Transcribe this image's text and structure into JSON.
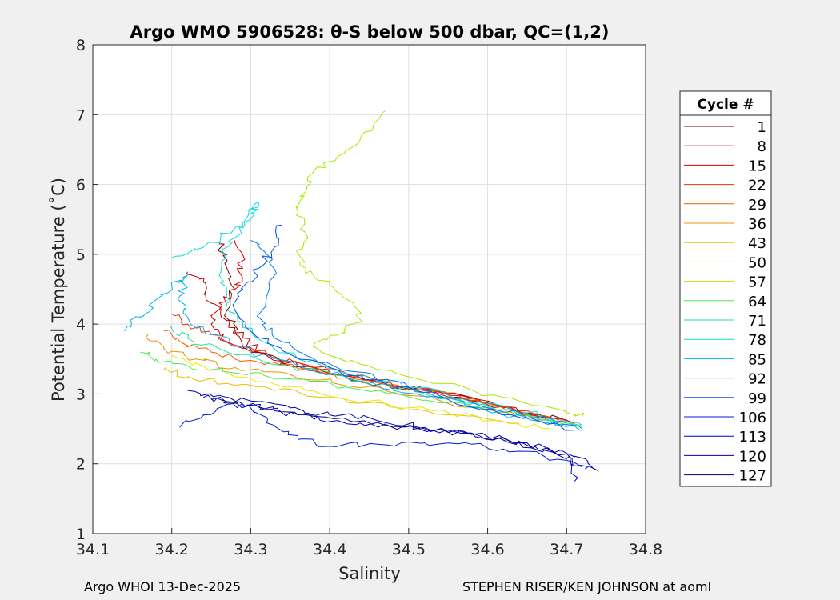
{
  "chart_data": {
    "type": "line",
    "title": "Argo WMO 5906528: θ-S below 500 dbar,  QC=(1,2)",
    "xlabel": "Salinity",
    "ylabel": "Potential Temperature (˚C)",
    "xlim": [
      34.1,
      34.8
    ],
    "ylim": [
      1,
      8
    ],
    "xticks": [
      34.1,
      34.2,
      34.3,
      34.4,
      34.5,
      34.6,
      34.7,
      34.8
    ],
    "yticks": [
      1,
      2,
      3,
      4,
      5,
      6,
      7,
      8
    ],
    "xtick_labels": [
      "34.1",
      "34.2",
      "34.3",
      "34.4",
      "34.5",
      "34.6",
      "34.7",
      "34.8"
    ],
    "ytick_labels": [
      "1",
      "2",
      "3",
      "4",
      "5",
      "6",
      "7",
      "8"
    ],
    "grid": true,
    "legend_title": "Cycle #",
    "legend_position": "outside-right",
    "legend": [
      {
        "label": "1",
        "color": "#800000"
      },
      {
        "label": "8",
        "color": "#aa0000"
      },
      {
        "label": "15",
        "color": "#d40000"
      },
      {
        "label": "22",
        "color": "#e83000"
      },
      {
        "label": "29",
        "color": "#ee6000"
      },
      {
        "label": "36",
        "color": "#f09000"
      },
      {
        "label": "43",
        "color": "#e8c000"
      },
      {
        "label": "50",
        "color": "#e8e800"
      },
      {
        "label": "57",
        "color": "#a8e800"
      },
      {
        "label": "64",
        "color": "#50e850"
      },
      {
        "label": "71",
        "color": "#20e0a0"
      },
      {
        "label": "78",
        "color": "#10d8d8"
      },
      {
        "label": "85",
        "color": "#00b0f0"
      },
      {
        "label": "92",
        "color": "#0080e8"
      },
      {
        "label": "99",
        "color": "#0050e0"
      },
      {
        "label": "106",
        "color": "#0020d8"
      },
      {
        "label": "113",
        "color": "#0000c8"
      },
      {
        "label": "120",
        "color": "#0000a0"
      },
      {
        "label": "127",
        "color": "#000080"
      }
    ],
    "series": [
      {
        "name": "1",
        "color": "#800000",
        "points": [
          [
            34.26,
            5.15
          ],
          [
            34.27,
            4.9
          ],
          [
            34.28,
            4.5
          ],
          [
            34.27,
            4.2
          ],
          [
            34.28,
            3.9
          ],
          [
            34.3,
            3.6
          ],
          [
            34.34,
            3.45
          ],
          [
            34.4,
            3.3
          ],
          [
            34.47,
            3.15
          ],
          [
            34.55,
            3.0
          ],
          [
            34.62,
            2.82
          ],
          [
            34.7,
            2.62
          ]
        ]
      },
      {
        "name": "8",
        "color": "#aa0000",
        "points": [
          [
            34.22,
            4.75
          ],
          [
            34.24,
            4.6
          ],
          [
            34.25,
            4.3
          ],
          [
            34.27,
            4.05
          ],
          [
            34.29,
            3.8
          ],
          [
            34.31,
            3.6
          ],
          [
            34.36,
            3.4
          ],
          [
            34.42,
            3.25
          ],
          [
            34.5,
            3.08
          ],
          [
            34.58,
            2.9
          ],
          [
            34.66,
            2.7
          ],
          [
            34.7,
            2.6
          ]
        ]
      },
      {
        "name": "15",
        "color": "#d40000",
        "points": [
          [
            34.28,
            5.2
          ],
          [
            34.29,
            4.8
          ],
          [
            34.28,
            4.5
          ],
          [
            34.26,
            4.3
          ],
          [
            34.25,
            4.0
          ],
          [
            34.27,
            3.75
          ],
          [
            34.32,
            3.55
          ],
          [
            34.38,
            3.38
          ],
          [
            34.46,
            3.18
          ],
          [
            34.54,
            3.02
          ],
          [
            34.63,
            2.8
          ],
          [
            34.71,
            2.58
          ]
        ]
      },
      {
        "name": "22",
        "color": "#e83000",
        "points": [
          [
            34.2,
            4.15
          ],
          [
            34.22,
            4.0
          ],
          [
            34.25,
            3.85
          ],
          [
            34.28,
            3.7
          ],
          [
            34.33,
            3.52
          ],
          [
            34.39,
            3.35
          ],
          [
            34.46,
            3.2
          ],
          [
            34.54,
            3.02
          ],
          [
            34.62,
            2.82
          ],
          [
            34.69,
            2.63
          ]
        ]
      },
      {
        "name": "29",
        "color": "#ee6000",
        "points": [
          [
            34.19,
            3.9
          ],
          [
            34.21,
            3.75
          ],
          [
            34.25,
            3.6
          ],
          [
            34.3,
            3.48
          ],
          [
            34.36,
            3.36
          ],
          [
            34.44,
            3.2
          ],
          [
            34.52,
            3.05
          ],
          [
            34.6,
            2.86
          ],
          [
            34.68,
            2.65
          ]
        ]
      },
      {
        "name": "36",
        "color": "#f09000",
        "points": [
          [
            34.17,
            3.85
          ],
          [
            34.19,
            3.65
          ],
          [
            34.23,
            3.5
          ],
          [
            34.28,
            3.38
          ],
          [
            34.35,
            3.28
          ],
          [
            34.42,
            3.12
          ],
          [
            34.5,
            2.98
          ],
          [
            34.58,
            2.82
          ],
          [
            34.67,
            2.62
          ]
        ]
      },
      {
        "name": "43",
        "color": "#e8c000",
        "points": [
          [
            34.19,
            3.35
          ],
          [
            34.22,
            3.25
          ],
          [
            34.27,
            3.15
          ],
          [
            34.33,
            3.05
          ],
          [
            34.4,
            2.95
          ],
          [
            34.48,
            2.82
          ],
          [
            34.56,
            2.7
          ],
          [
            34.64,
            2.58
          ]
        ]
      },
      {
        "name": "50",
        "color": "#e8e800",
        "points": [
          [
            34.2,
            3.55
          ],
          [
            34.24,
            3.4
          ],
          [
            34.3,
            3.22
          ],
          [
            34.37,
            3.05
          ],
          [
            34.45,
            2.9
          ],
          [
            34.53,
            2.76
          ],
          [
            34.61,
            2.62
          ],
          [
            34.68,
            2.5
          ]
        ]
      },
      {
        "name": "57",
        "color": "#a8e800",
        "points": [
          [
            34.47,
            7.05
          ],
          [
            34.44,
            6.7
          ],
          [
            34.41,
            6.4
          ],
          [
            34.38,
            6.2
          ],
          [
            34.37,
            5.9
          ],
          [
            34.36,
            5.6
          ],
          [
            34.37,
            5.3
          ],
          [
            34.36,
            5.0
          ],
          [
            34.37,
            4.8
          ],
          [
            34.4,
            4.55
          ],
          [
            34.43,
            4.3
          ],
          [
            34.44,
            4.05
          ],
          [
            34.41,
            3.85
          ],
          [
            34.38,
            3.7
          ],
          [
            34.4,
            3.55
          ],
          [
            34.46,
            3.35
          ],
          [
            34.54,
            3.15
          ],
          [
            34.62,
            2.95
          ],
          [
            34.7,
            2.75
          ],
          [
            34.72,
            2.68
          ]
        ]
      },
      {
        "name": "64",
        "color": "#50e850",
        "points": [
          [
            34.16,
            3.6
          ],
          [
            34.18,
            3.5
          ],
          [
            34.22,
            3.4
          ],
          [
            34.28,
            3.3
          ],
          [
            34.34,
            3.22
          ],
          [
            34.42,
            3.1
          ],
          [
            34.5,
            2.96
          ],
          [
            34.58,
            2.82
          ],
          [
            34.66,
            2.68
          ],
          [
            34.72,
            2.55
          ]
        ]
      },
      {
        "name": "71",
        "color": "#20e0a0",
        "points": [
          [
            34.2,
            3.95
          ],
          [
            34.22,
            3.8
          ],
          [
            34.26,
            3.65
          ],
          [
            34.31,
            3.5
          ],
          [
            34.37,
            3.35
          ],
          [
            34.44,
            3.18
          ],
          [
            34.52,
            3.0
          ],
          [
            34.6,
            2.82
          ],
          [
            34.68,
            2.62
          ],
          [
            34.72,
            2.52
          ]
        ]
      },
      {
        "name": "78",
        "color": "#10d8d8",
        "points": [
          [
            34.2,
            4.95
          ],
          [
            34.24,
            5.1
          ],
          [
            34.27,
            5.3
          ],
          [
            34.3,
            5.5
          ],
          [
            34.31,
            5.75
          ],
          [
            34.29,
            5.4
          ],
          [
            34.27,
            5.1
          ],
          [
            34.26,
            4.7
          ],
          [
            34.27,
            4.3
          ],
          [
            34.29,
            3.95
          ],
          [
            34.33,
            3.65
          ],
          [
            34.39,
            3.4
          ],
          [
            34.47,
            3.18
          ],
          [
            34.55,
            2.98
          ],
          [
            34.63,
            2.78
          ],
          [
            34.71,
            2.56
          ]
        ]
      },
      {
        "name": "85",
        "color": "#00b0f0",
        "points": [
          [
            34.14,
            3.9
          ],
          [
            34.16,
            4.1
          ],
          [
            34.18,
            4.35
          ],
          [
            34.2,
            4.55
          ],
          [
            34.22,
            4.7
          ],
          [
            34.21,
            4.4
          ],
          [
            34.22,
            4.1
          ],
          [
            34.25,
            3.85
          ],
          [
            34.3,
            3.6
          ],
          [
            34.36,
            3.4
          ],
          [
            34.43,
            3.2
          ],
          [
            34.51,
            3.0
          ],
          [
            34.59,
            2.8
          ],
          [
            34.67,
            2.6
          ],
          [
            34.72,
            2.48
          ]
        ]
      },
      {
        "name": "92",
        "color": "#0080e8",
        "points": [
          [
            34.3,
            5.2
          ],
          [
            34.32,
            5.0
          ],
          [
            34.33,
            4.7
          ],
          [
            34.32,
            4.4
          ],
          [
            34.31,
            4.1
          ],
          [
            34.33,
            3.8
          ],
          [
            34.37,
            3.55
          ],
          [
            34.43,
            3.32
          ],
          [
            34.5,
            3.1
          ],
          [
            34.58,
            2.88
          ],
          [
            34.66,
            2.66
          ],
          [
            34.72,
            2.5
          ]
        ]
      },
      {
        "name": "99",
        "color": "#0050e0",
        "points": [
          [
            34.34,
            5.42
          ],
          [
            34.33,
            5.1
          ],
          [
            34.31,
            4.8
          ],
          [
            34.29,
            4.5
          ],
          [
            34.28,
            4.2
          ],
          [
            34.3,
            3.9
          ],
          [
            34.34,
            3.62
          ],
          [
            34.4,
            3.38
          ],
          [
            34.47,
            3.15
          ],
          [
            34.55,
            2.92
          ],
          [
            34.63,
            2.7
          ],
          [
            34.71,
            2.48
          ]
        ]
      },
      {
        "name": "106",
        "color": "#0020d8",
        "points": [
          [
            34.21,
            2.52
          ],
          [
            34.24,
            2.7
          ],
          [
            34.27,
            2.85
          ],
          [
            34.3,
            2.8
          ],
          [
            34.33,
            2.55
          ],
          [
            34.36,
            2.35
          ],
          [
            34.4,
            2.25
          ],
          [
            34.46,
            2.28
          ],
          [
            34.52,
            2.3
          ],
          [
            34.58,
            2.28
          ],
          [
            34.64,
            2.18
          ],
          [
            34.7,
            2.05
          ],
          [
            34.74,
            1.9
          ]
        ]
      },
      {
        "name": "113",
        "color": "#0000c8",
        "points": [
          [
            34.24,
            2.95
          ],
          [
            34.28,
            2.88
          ],
          [
            34.32,
            2.78
          ],
          [
            34.36,
            2.7
          ],
          [
            34.41,
            2.62
          ],
          [
            34.47,
            2.55
          ],
          [
            34.53,
            2.48
          ],
          [
            34.59,
            2.4
          ],
          [
            34.65,
            2.3
          ],
          [
            34.7,
            2.15
          ],
          [
            34.71,
            1.75
          ]
        ]
      },
      {
        "name": "120",
        "color": "#0000a0",
        "points": [
          [
            34.22,
            3.05
          ],
          [
            34.26,
            2.98
          ],
          [
            34.3,
            2.9
          ],
          [
            34.35,
            2.8
          ],
          [
            34.4,
            2.7
          ],
          [
            34.46,
            2.62
          ],
          [
            34.52,
            2.52
          ],
          [
            34.58,
            2.42
          ],
          [
            34.64,
            2.3
          ],
          [
            34.69,
            2.12
          ],
          [
            34.72,
            1.95
          ]
        ]
      },
      {
        "name": "127",
        "color": "#000080",
        "points": [
          [
            34.25,
            2.92
          ],
          [
            34.29,
            2.85
          ],
          [
            34.33,
            2.76
          ],
          [
            34.38,
            2.68
          ],
          [
            34.43,
            2.6
          ],
          [
            34.49,
            2.52
          ],
          [
            34.55,
            2.45
          ],
          [
            34.61,
            2.36
          ],
          [
            34.66,
            2.25
          ],
          [
            34.71,
            2.1
          ],
          [
            34.74,
            1.9
          ]
        ]
      }
    ]
  },
  "footer": {
    "left": "Argo WHOI 13-Dec-2025",
    "right": "STEPHEN RISER/KEN JOHNSON at aoml"
  }
}
